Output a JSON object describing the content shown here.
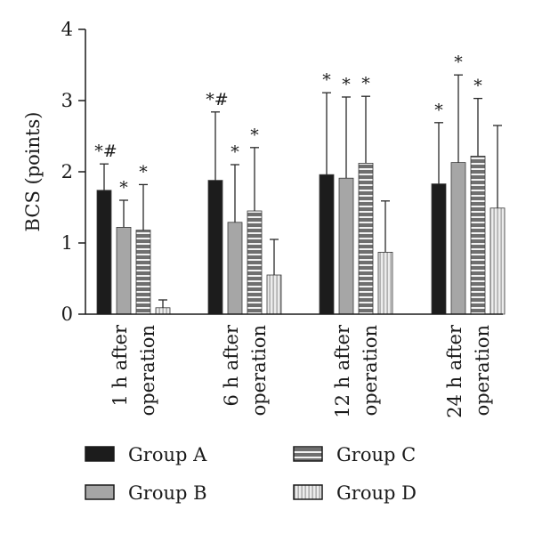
{
  "chart_data": {
    "type": "bar",
    "title": "",
    "xlabel": "",
    "ylabel": "BCS (points)",
    "ylim": [
      0,
      4
    ],
    "yticks": [
      0,
      1,
      2,
      3,
      4
    ],
    "grid": false,
    "legend_position": "bottom",
    "categories": [
      [
        "1 h after",
        "operation"
      ],
      [
        "6 h after",
        "operation"
      ],
      [
        "12 h after",
        "operation"
      ],
      [
        "24 h after",
        "operation"
      ]
    ],
    "series": [
      {
        "name": "Group A",
        "color": "#1c1c1c",
        "pattern": "solid",
        "values": [
          1.74,
          1.88,
          1.96,
          1.83
        ],
        "errors": [
          0.37,
          0.96,
          1.15,
          0.86
        ],
        "markers": [
          "*#",
          "*#",
          "*",
          "*"
        ]
      },
      {
        "name": "Group B",
        "color": "#a6a6a6",
        "pattern": "solid",
        "values": [
          1.22,
          1.29,
          1.91,
          2.13
        ],
        "errors": [
          0.38,
          0.81,
          1.14,
          1.23
        ],
        "markers": [
          "*",
          "*",
          "*",
          "*"
        ]
      },
      {
        "name": "Group C",
        "color": "#7a7a7a",
        "pattern": "horizontal-stripes",
        "values": [
          1.18,
          1.45,
          2.12,
          2.22
        ],
        "errors": [
          0.64,
          0.89,
          0.94,
          0.81
        ],
        "markers": [
          "*",
          "*",
          "*",
          "*"
        ]
      },
      {
        "name": "Group D",
        "color": "#d9d9d9",
        "pattern": "vertical-stripes",
        "values": [
          0.09,
          0.55,
          0.87,
          1.49
        ],
        "errors": [
          0.11,
          0.5,
          0.72,
          1.16
        ],
        "markers": [
          "",
          "",
          "",
          ""
        ]
      }
    ]
  }
}
